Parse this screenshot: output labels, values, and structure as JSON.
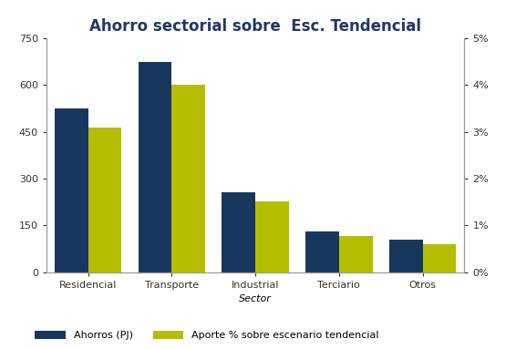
{
  "chart_data": {
    "type": "bar",
    "title": "Ahorro sectorial sobre  Esc. Tendencial",
    "x_label": "Sector",
    "categories": [
      "Residencial",
      "Transporte",
      "Industrial",
      "Terciario",
      "Otros"
    ],
    "series": [
      {
        "name": "Ahorros (PJ)",
        "color": "#17375e",
        "values": [
          525,
          675,
          255,
          130,
          103
        ]
      },
      {
        "name": "Aporte % sobre escenario tendencial",
        "color": "#b5bd00",
        "axis": "y2",
        "values": [
          3.1,
          4.0,
          1.52,
          0.78,
          0.6
        ]
      }
    ],
    "ylim": [
      0,
      750
    ],
    "yticks": [
      0,
      150,
      300,
      450,
      600,
      750
    ],
    "y2lim": [
      0,
      5
    ],
    "y2ticks": [
      {
        "value": 0,
        "label": "0%"
      },
      {
        "value": 1,
        "label": "1%"
      },
      {
        "value": 2,
        "label": "2%"
      },
      {
        "value": 3,
        "label": "3%"
      },
      {
        "value": 4,
        "label": "4%"
      },
      {
        "value": 5,
        "label": "5%"
      }
    ],
    "grid": false,
    "legend": "lower left"
  }
}
